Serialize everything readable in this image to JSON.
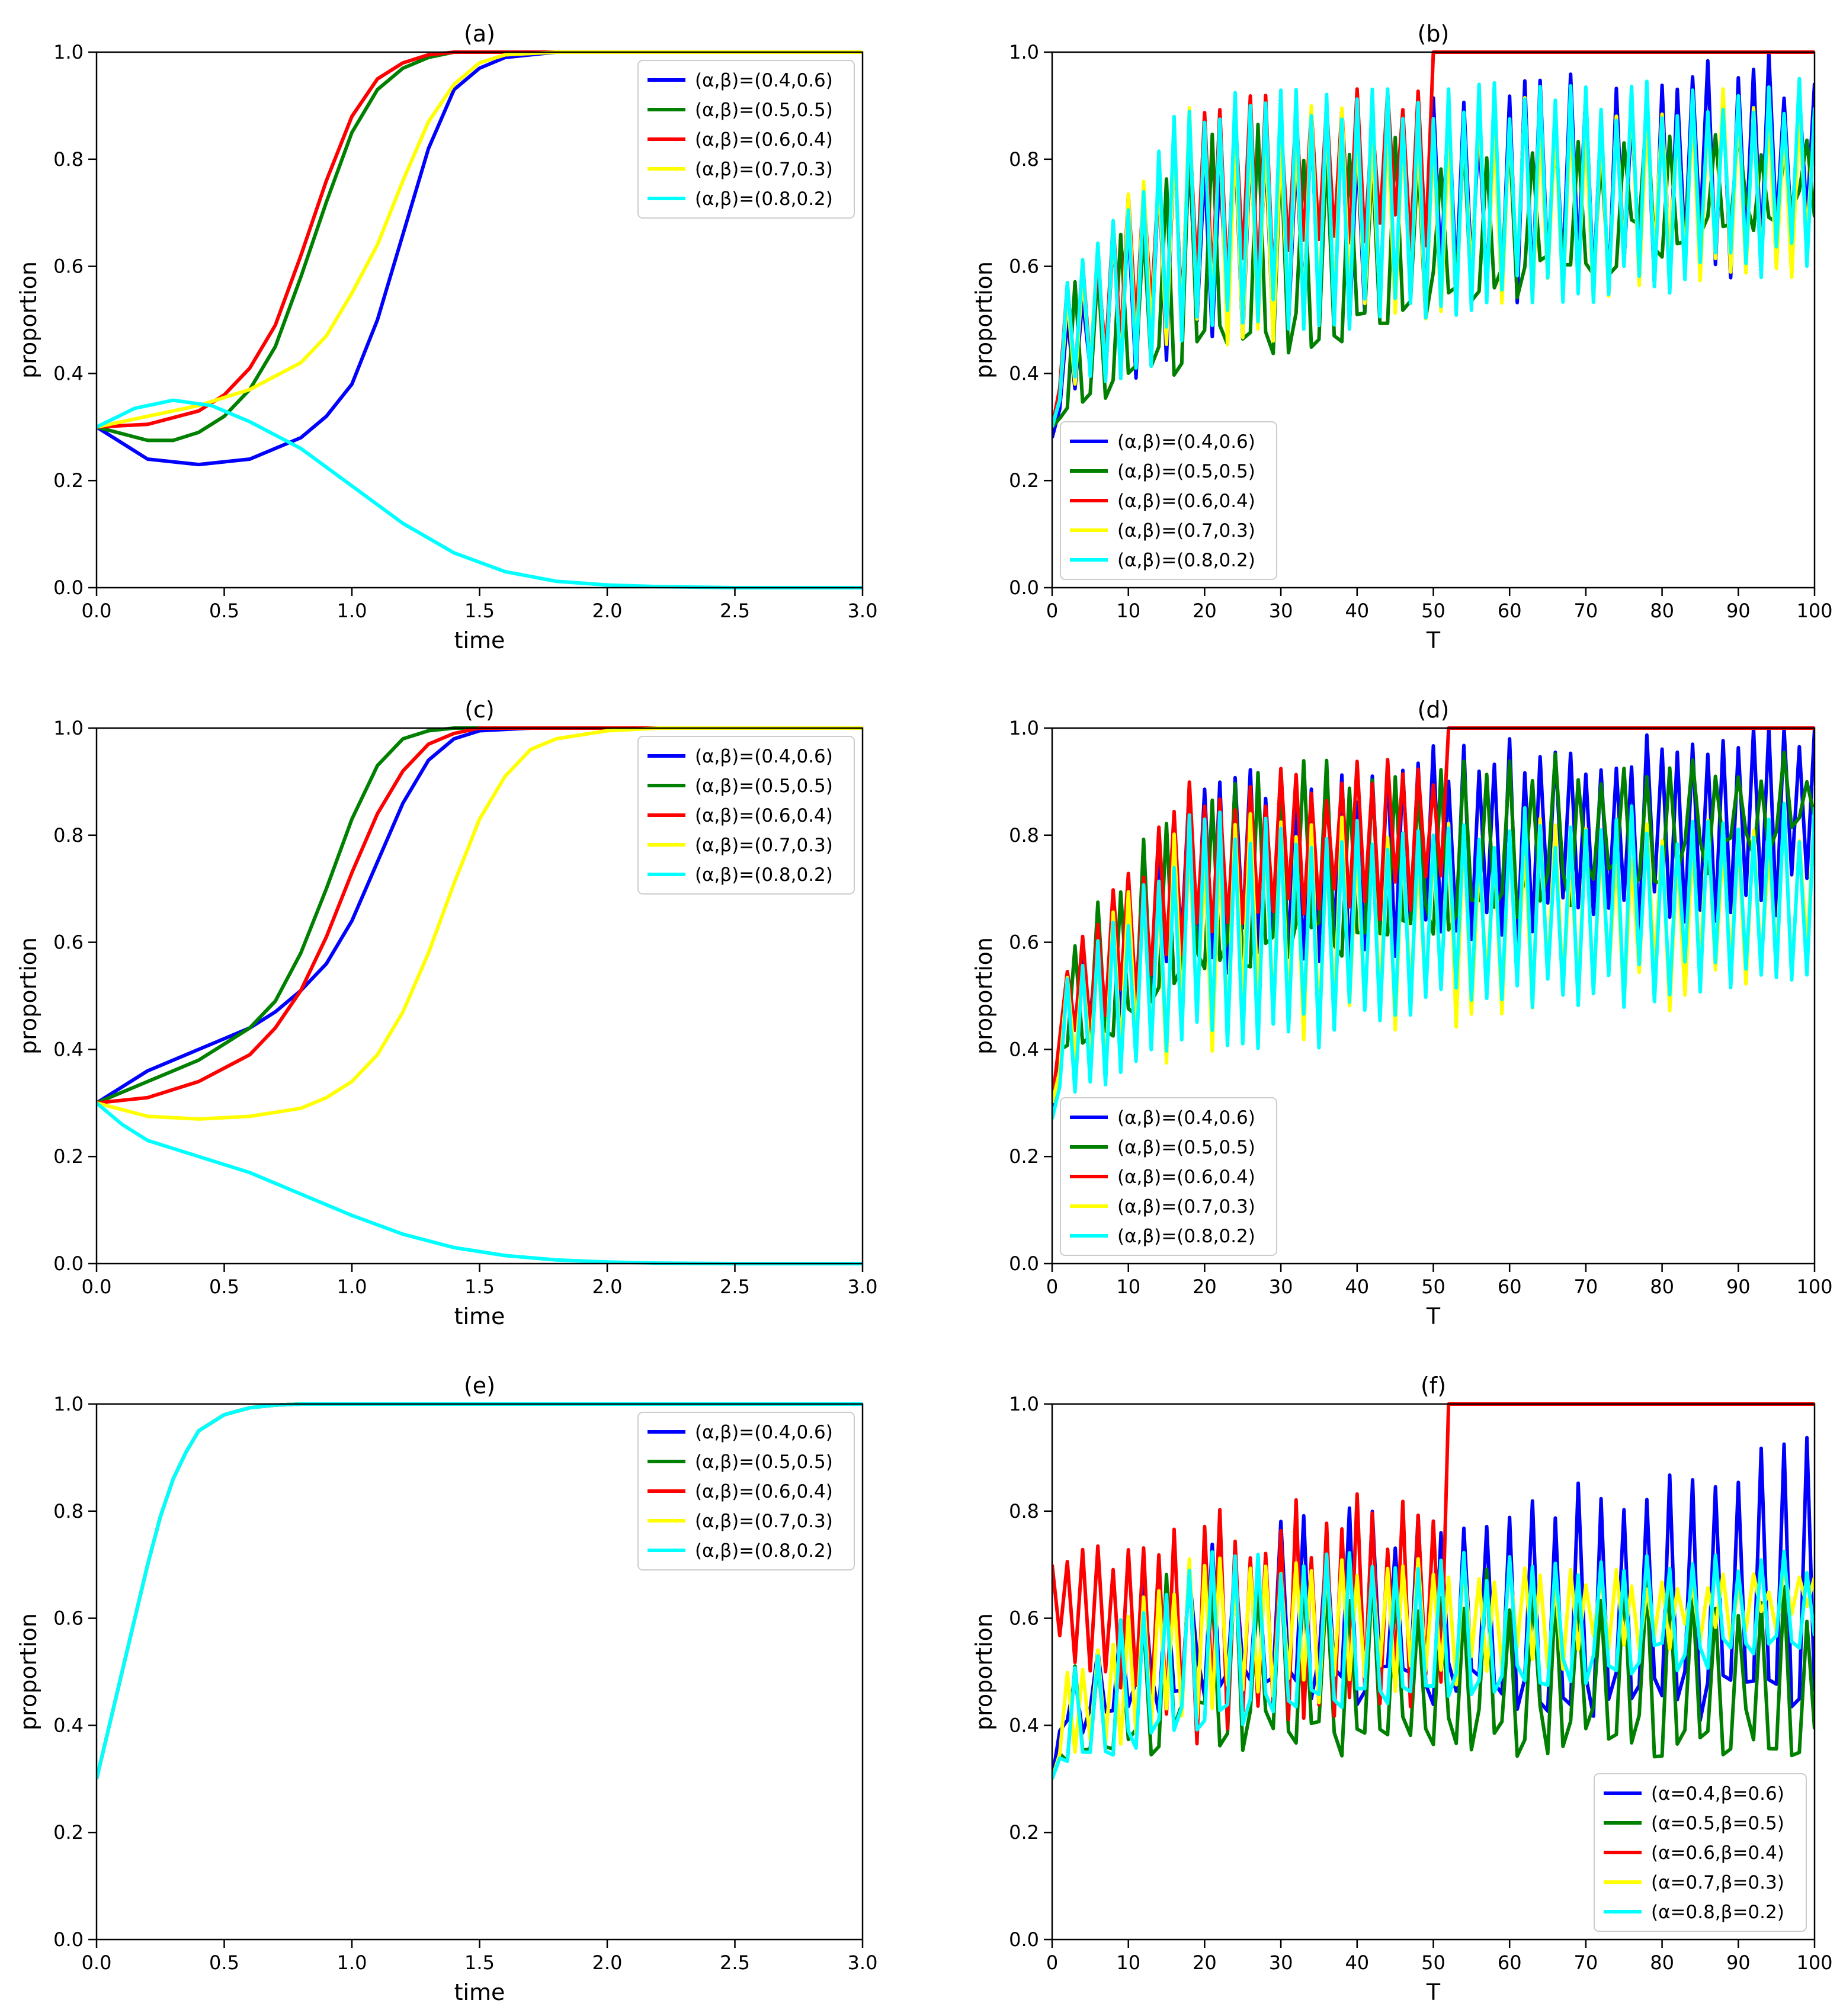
{
  "colors": {
    "blue": "#0000ff",
    "green": "#008000",
    "red": "#ff0000",
    "yellow": "#ffff00",
    "cyan": "#00ffff"
  },
  "chart_data": [
    {
      "id": "a",
      "type": "line",
      "title": "(a)",
      "xlabel": "time",
      "ylabel": "proportion",
      "xlim": [
        0,
        3
      ],
      "ylim": [
        0,
        1
      ],
      "xticks": [
        0,
        0.5,
        1,
        1.5,
        2,
        2.5,
        3
      ],
      "xtick_labels": [
        "0.0",
        "0.5",
        "1.0",
        "1.5",
        "2.0",
        "2.5",
        "3.0"
      ],
      "yticks": [
        0,
        0.2,
        0.4,
        0.6,
        0.8,
        1
      ],
      "ytick_labels": [
        "0.0",
        "0.2",
        "0.4",
        "0.6",
        "0.8",
        "1.0"
      ],
      "legend": "top-right",
      "series": [
        {
          "name": "(α,β)=(0.4,0.6)",
          "color": "#0000ff",
          "x": [
            0,
            0.2,
            0.4,
            0.6,
            0.8,
            0.9,
            1.0,
            1.1,
            1.2,
            1.3,
            1.4,
            1.5,
            1.6,
            1.8,
            2.0,
            3.0
          ],
          "y": [
            0.3,
            0.24,
            0.23,
            0.24,
            0.28,
            0.32,
            0.38,
            0.5,
            0.66,
            0.82,
            0.93,
            0.97,
            0.99,
            1.0,
            1.0,
            1.0
          ]
        },
        {
          "name": "(α,β)=(0.5,0.5)",
          "color": "#008000",
          "x": [
            0,
            0.2,
            0.3,
            0.4,
            0.5,
            0.6,
            0.7,
            0.8,
            0.9,
            1.0,
            1.1,
            1.2,
            1.3,
            1.4,
            1.6,
            3.0
          ],
          "y": [
            0.3,
            0.275,
            0.275,
            0.29,
            0.32,
            0.37,
            0.45,
            0.58,
            0.72,
            0.85,
            0.93,
            0.97,
            0.99,
            1.0,
            1.0,
            1.0
          ]
        },
        {
          "name": "(α,β)=(0.6,0.4)",
          "color": "#ff0000",
          "x": [
            0,
            0.2,
            0.4,
            0.5,
            0.6,
            0.7,
            0.8,
            0.9,
            1.0,
            1.1,
            1.2,
            1.3,
            1.4,
            3.0
          ],
          "y": [
            0.3,
            0.305,
            0.33,
            0.36,
            0.41,
            0.49,
            0.62,
            0.76,
            0.88,
            0.95,
            0.98,
            0.995,
            1.0,
            1.0
          ]
        },
        {
          "name": "(α,β)=(0.7,0.3)",
          "color": "#ffff00",
          "x": [
            0,
            0.2,
            0.4,
            0.6,
            0.8,
            0.9,
            1.0,
            1.1,
            1.2,
            1.3,
            1.4,
            1.5,
            1.6,
            1.8,
            2.0,
            3.0
          ],
          "y": [
            0.3,
            0.32,
            0.34,
            0.37,
            0.42,
            0.47,
            0.55,
            0.64,
            0.76,
            0.87,
            0.94,
            0.98,
            0.995,
            1.0,
            1.0,
            1.0
          ]
        },
        {
          "name": "(α,β)=(0.8,0.2)",
          "color": "#00ffff",
          "x": [
            0,
            0.15,
            0.3,
            0.45,
            0.6,
            0.8,
            1.0,
            1.2,
            1.4,
            1.6,
            1.8,
            2.0,
            2.2,
            2.5,
            3.0
          ],
          "y": [
            0.3,
            0.335,
            0.35,
            0.34,
            0.31,
            0.26,
            0.19,
            0.12,
            0.065,
            0.03,
            0.012,
            0.005,
            0.002,
            0.0,
            0.0
          ]
        }
      ]
    },
    {
      "id": "b",
      "type": "line",
      "title": "(b)",
      "xlabel": "T",
      "ylabel": "proportion",
      "xlim": [
        0,
        100
      ],
      "ylim": [
        0,
        1
      ],
      "xticks": [
        0,
        10,
        20,
        30,
        40,
        50,
        60,
        70,
        80,
        90,
        100
      ],
      "xtick_labels": [
        "0",
        "10",
        "20",
        "30",
        "40",
        "50",
        "60",
        "70",
        "80",
        "90",
        "100"
      ],
      "yticks": [
        0,
        0.2,
        0.4,
        0.6,
        0.8,
        1
      ],
      "ytick_labels": [
        "0.0",
        "0.2",
        "0.4",
        "0.6",
        "0.8",
        "1.0"
      ],
      "legend": "lower-left",
      "series": [
        {
          "name": "(α,β)=(0.4,0.6)",
          "color": "#0000ff",
          "generator": {
            "start": 0.28,
            "lowStart": 0.45,
            "lowEnd": 0.65,
            "highStart": 0.8,
            "highEnd": 0.97,
            "noise": 0.05,
            "period": 2
          }
        },
        {
          "name": "(α,β)=(0.5,0.5)",
          "color": "#008000",
          "generator": {
            "start": 0.3,
            "lowStart": 0.38,
            "lowEnd": 0.72,
            "highStart": 0.8,
            "highEnd": 0.86,
            "noise": 0.05,
            "period": 3
          }
        },
        {
          "name": "(α,β)=(0.6,0.4)",
          "color": "#ff0000",
          "generator": {
            "start": 0.3,
            "lowStart": 0.5,
            "lowEnd": 0.85,
            "highStart": 0.85,
            "highEnd": 0.98,
            "noise": 0.04,
            "period": 2,
            "saturateAt": 50
          }
        },
        {
          "name": "(α,β)=(0.7,0.3)",
          "color": "#ffff00",
          "generator": {
            "start": 0.3,
            "lowStart": 0.45,
            "lowEnd": 0.62,
            "highStart": 0.85,
            "highEnd": 0.9,
            "noise": 0.04,
            "period": 2
          }
        },
        {
          "name": "(α,β)=(0.8,0.2)",
          "color": "#00ffff",
          "generator": {
            "start": 0.3,
            "lowStart": 0.45,
            "lowEnd": 0.62,
            "highStart": 0.88,
            "highEnd": 0.92,
            "noise": 0.04,
            "period": 2
          }
        }
      ]
    },
    {
      "id": "c",
      "type": "line",
      "title": "(c)",
      "xlabel": "time",
      "ylabel": "proportion",
      "xlim": [
        0,
        3
      ],
      "ylim": [
        0,
        1
      ],
      "xticks": [
        0,
        0.5,
        1,
        1.5,
        2,
        2.5,
        3
      ],
      "xtick_labels": [
        "0.0",
        "0.5",
        "1.0",
        "1.5",
        "2.0",
        "2.5",
        "3.0"
      ],
      "yticks": [
        0,
        0.2,
        0.4,
        0.6,
        0.8,
        1
      ],
      "ytick_labels": [
        "0.0",
        "0.2",
        "0.4",
        "0.6",
        "0.8",
        "1.0"
      ],
      "legend": "top-right",
      "series": [
        {
          "name": "(α,β)=(0.4,0.6)",
          "color": "#0000ff",
          "x": [
            0,
            0.2,
            0.4,
            0.6,
            0.7,
            0.8,
            0.9,
            1.0,
            1.1,
            1.2,
            1.3,
            1.4,
            1.5,
            1.7,
            3.0
          ],
          "y": [
            0.3,
            0.36,
            0.4,
            0.44,
            0.47,
            0.51,
            0.56,
            0.64,
            0.75,
            0.86,
            0.94,
            0.98,
            0.995,
            1.0,
            1.0
          ]
        },
        {
          "name": "(α,β)=(0.5,0.5)",
          "color": "#008000",
          "x": [
            0,
            0.2,
            0.4,
            0.6,
            0.7,
            0.8,
            0.9,
            1.0,
            1.1,
            1.2,
            1.3,
            1.4,
            1.6,
            3.0
          ],
          "y": [
            0.3,
            0.34,
            0.38,
            0.44,
            0.49,
            0.58,
            0.7,
            0.83,
            0.93,
            0.98,
            0.995,
            1.0,
            1.0,
            1.0
          ]
        },
        {
          "name": "(α,β)=(0.6,0.4)",
          "color": "#ff0000",
          "x": [
            0,
            0.2,
            0.4,
            0.6,
            0.7,
            0.8,
            0.9,
            1.0,
            1.1,
            1.2,
            1.3,
            1.4,
            1.5,
            1.7,
            3.0
          ],
          "y": [
            0.3,
            0.31,
            0.34,
            0.39,
            0.44,
            0.51,
            0.61,
            0.73,
            0.84,
            0.92,
            0.97,
            0.99,
            1.0,
            1.0,
            1.0
          ]
        },
        {
          "name": "(α,β)=(0.7,0.3)",
          "color": "#ffff00",
          "x": [
            0,
            0.2,
            0.4,
            0.6,
            0.8,
            0.9,
            1.0,
            1.1,
            1.2,
            1.3,
            1.4,
            1.5,
            1.6,
            1.7,
            1.8,
            2.0,
            2.2,
            3.0
          ],
          "y": [
            0.3,
            0.275,
            0.27,
            0.275,
            0.29,
            0.31,
            0.34,
            0.39,
            0.47,
            0.58,
            0.71,
            0.83,
            0.91,
            0.96,
            0.98,
            0.995,
            1.0,
            1.0
          ]
        },
        {
          "name": "(α,β)=(0.8,0.2)",
          "color": "#00ffff",
          "x": [
            0,
            0.1,
            0.2,
            0.4,
            0.6,
            0.8,
            1.0,
            1.2,
            1.4,
            1.6,
            1.8,
            2.0,
            2.2,
            2.5,
            3.0
          ],
          "y": [
            0.3,
            0.26,
            0.23,
            0.2,
            0.17,
            0.13,
            0.09,
            0.055,
            0.03,
            0.015,
            0.007,
            0.003,
            0.001,
            0.0,
            0.0
          ]
        }
      ]
    },
    {
      "id": "d",
      "type": "line",
      "title": "(d)",
      "xlabel": "T",
      "ylabel": "proportion",
      "xlim": [
        0,
        100
      ],
      "ylim": [
        0,
        1
      ],
      "xticks": [
        0,
        10,
        20,
        30,
        40,
        50,
        60,
        70,
        80,
        90,
        100
      ],
      "xtick_labels": [
        "0",
        "10",
        "20",
        "30",
        "40",
        "50",
        "60",
        "70",
        "80",
        "90",
        "100"
      ],
      "yticks": [
        0,
        0.2,
        0.4,
        0.6,
        0.8,
        1
      ],
      "ytick_labels": [
        "0.0",
        "0.2",
        "0.4",
        "0.6",
        "0.8",
        "1.0"
      ],
      "legend": "lower-left",
      "series": [
        {
          "name": "(α,β)=(0.4,0.6)",
          "color": "#0000ff",
          "generator": {
            "start": 0.28,
            "lowStart": 0.55,
            "lowEnd": 0.68,
            "highStart": 0.85,
            "highEnd": 0.99,
            "noise": 0.05,
            "period": 2
          }
        },
        {
          "name": "(α,β)=(0.5,0.5)",
          "color": "#008000",
          "generator": {
            "start": 0.3,
            "lowStart": 0.5,
            "lowEnd": 0.8,
            "highStart": 0.9,
            "highEnd": 0.92,
            "noise": 0.04,
            "period": 3
          }
        },
        {
          "name": "(α,β)=(0.6,0.4)",
          "color": "#ff0000",
          "generator": {
            "start": 0.3,
            "lowStart": 0.55,
            "lowEnd": 0.85,
            "highStart": 0.85,
            "highEnd": 0.99,
            "noise": 0.04,
            "period": 2,
            "saturateAt": 52
          }
        },
        {
          "name": "(α,β)=(0.7,0.3)",
          "color": "#ffff00",
          "generator": {
            "start": 0.3,
            "lowStart": 0.4,
            "lowEnd": 0.55,
            "highStart": 0.8,
            "highEnd": 0.8,
            "noise": 0.05,
            "period": 2
          }
        },
        {
          "name": "(α,β)=(0.8,0.2)",
          "color": "#00ffff",
          "generator": {
            "start": 0.27,
            "lowStart": 0.38,
            "lowEnd": 0.56,
            "highStart": 0.8,
            "highEnd": 0.82,
            "noise": 0.04,
            "period": 2
          }
        }
      ]
    },
    {
      "id": "e",
      "type": "line",
      "title": "(e)",
      "xlabel": "time",
      "ylabel": "proportion",
      "xlim": [
        0,
        3
      ],
      "ylim": [
        0,
        1
      ],
      "xticks": [
        0,
        0.5,
        1,
        1.5,
        2,
        2.5,
        3
      ],
      "xtick_labels": [
        "0.0",
        "0.5",
        "1.0",
        "1.5",
        "2.0",
        "2.5",
        "3.0"
      ],
      "yticks": [
        0,
        0.2,
        0.4,
        0.6,
        0.8,
        1
      ],
      "ytick_labels": [
        "0.0",
        "0.2",
        "0.4",
        "0.6",
        "0.8",
        "1.0"
      ],
      "legend": "top-right",
      "series": [
        {
          "name": "(α,β)=(0.4,0.6)",
          "color": "#0000ff",
          "x": [
            0,
            0.05,
            0.1,
            0.15,
            0.2,
            0.25,
            0.3,
            0.35,
            0.4,
            0.5,
            0.6,
            0.7,
            0.8,
            1.0,
            3.0
          ],
          "y": [
            0.3,
            0.4,
            0.5,
            0.6,
            0.7,
            0.79,
            0.86,
            0.91,
            0.95,
            0.98,
            0.993,
            0.998,
            1.0,
            1.0,
            1.0
          ]
        },
        {
          "name": "(α,β)=(0.5,0.5)",
          "color": "#008000",
          "x": [
            0,
            0.05,
            0.1,
            0.15,
            0.2,
            0.25,
            0.3,
            0.35,
            0.4,
            0.5,
            0.6,
            0.7,
            0.8,
            1.0,
            3.0
          ],
          "y": [
            0.3,
            0.4,
            0.5,
            0.6,
            0.7,
            0.79,
            0.86,
            0.91,
            0.95,
            0.98,
            0.993,
            0.998,
            1.0,
            1.0,
            1.0
          ]
        },
        {
          "name": "(α,β)=(0.6,0.4)",
          "color": "#ff0000",
          "x": [
            0,
            0.05,
            0.1,
            0.15,
            0.2,
            0.25,
            0.3,
            0.35,
            0.4,
            0.5,
            0.6,
            0.7,
            0.8,
            1.0,
            3.0
          ],
          "y": [
            0.3,
            0.4,
            0.5,
            0.6,
            0.7,
            0.79,
            0.86,
            0.91,
            0.95,
            0.98,
            0.993,
            0.998,
            1.0,
            1.0,
            1.0
          ]
        },
        {
          "name": "(α,β)=(0.7,0.3)",
          "color": "#ffff00",
          "x": [
            0,
            0.05,
            0.1,
            0.15,
            0.2,
            0.25,
            0.3,
            0.35,
            0.4,
            0.5,
            0.6,
            0.7,
            0.8,
            1.0,
            3.0
          ],
          "y": [
            0.3,
            0.4,
            0.5,
            0.6,
            0.7,
            0.79,
            0.86,
            0.91,
            0.95,
            0.98,
            0.993,
            0.998,
            1.0,
            1.0,
            1.0
          ]
        },
        {
          "name": "(α,β)=(0.8,0.2)",
          "color": "#00ffff",
          "x": [
            0,
            0.05,
            0.1,
            0.15,
            0.2,
            0.25,
            0.3,
            0.35,
            0.4,
            0.5,
            0.6,
            0.7,
            0.8,
            1.0,
            3.0
          ],
          "y": [
            0.3,
            0.4,
            0.5,
            0.6,
            0.7,
            0.79,
            0.86,
            0.91,
            0.95,
            0.98,
            0.993,
            0.998,
            1.0,
            1.0,
            1.0
          ]
        }
      ]
    },
    {
      "id": "f",
      "type": "line",
      "title": "(f)",
      "xlabel": "T",
      "ylabel": "proportion",
      "xlim": [
        0,
        100
      ],
      "ylim": [
        0,
        1
      ],
      "xticks": [
        0,
        10,
        20,
        30,
        40,
        50,
        60,
        70,
        80,
        90,
        100
      ],
      "xtick_labels": [
        "0",
        "10",
        "20",
        "30",
        "40",
        "50",
        "60",
        "70",
        "80",
        "90",
        "100"
      ],
      "yticks": [
        0,
        0.2,
        0.4,
        0.6,
        0.8,
        1
      ],
      "ytick_labels": [
        "0.0",
        "0.2",
        "0.4",
        "0.6",
        "0.8",
        "1.0"
      ],
      "legend": "lower-right",
      "series": [
        {
          "name": "(α=0.4,β=0.6)",
          "color": "#0000ff",
          "generator": {
            "start": 0.3,
            "lowStart": 0.5,
            "lowEnd": 0.45,
            "highStart": 0.68,
            "highEnd": 0.9,
            "noise": 0.05,
            "period": 3
          }
        },
        {
          "name": "(α=0.5,β=0.5)",
          "color": "#008000",
          "generator": {
            "start": 0.3,
            "lowStart": 0.4,
            "lowEnd": 0.38,
            "highStart": 0.7,
            "highEnd": 0.62,
            "noise": 0.05,
            "period": 3
          }
        },
        {
          "name": "(α=0.6,β=0.4)",
          "color": "#ff0000",
          "generator": {
            "start": 0.7,
            "lowStart": 0.38,
            "lowEnd": 0.6,
            "highStart": 0.7,
            "highEnd": 0.9,
            "noise": 0.06,
            "period": 2,
            "saturateAt": 52
          }
        },
        {
          "name": "(α=0.7,β=0.3)",
          "color": "#ffff00",
          "generator": {
            "start": 0.3,
            "lowStart": 0.4,
            "lowEnd": 0.6,
            "highStart": 0.7,
            "highEnd": 0.67,
            "noise": 0.03,
            "period": 2
          }
        },
        {
          "name": "(α=0.8,β=0.2)",
          "color": "#00ffff",
          "generator": {
            "start": 0.3,
            "lowStart": 0.38,
            "lowEnd": 0.56,
            "highStart": 0.7,
            "highEnd": 0.7,
            "noise": 0.03,
            "period": 3
          }
        }
      ]
    }
  ]
}
